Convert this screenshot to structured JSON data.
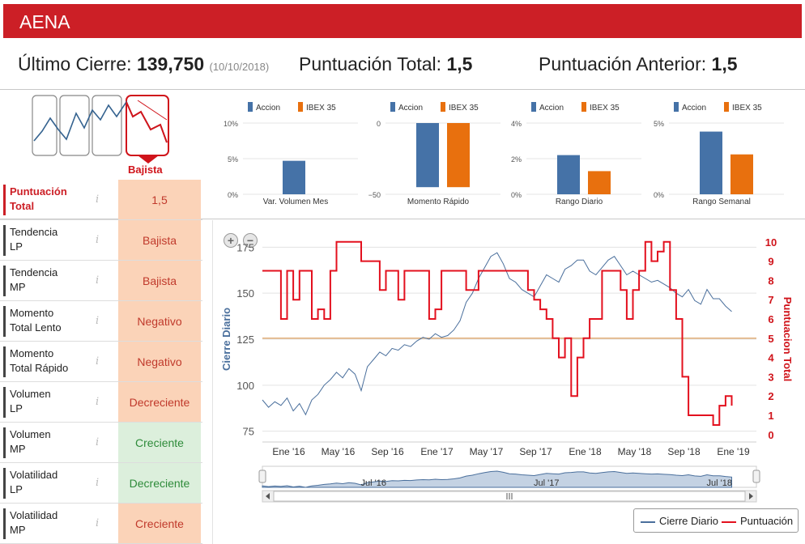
{
  "header": {
    "title": "AENA"
  },
  "summary": {
    "last_close_label": "Último Cierre:",
    "last_close_value": "139,750",
    "last_close_date": "(10/10/2018)",
    "total_score_label": "Puntuación Total:",
    "total_score_value": "1,5",
    "prev_score_label": "Puntuación Anterior:",
    "prev_score_value": "1,5"
  },
  "trend": {
    "label": "Bajista"
  },
  "score_table": {
    "info_icon": "i",
    "rows": [
      {
        "label_line1": "Puntuación",
        "label_line2": "Total",
        "value": "1,5"
      },
      {
        "label_line1": "Tendencia",
        "label_line2": "LP",
        "value": "Bajista"
      },
      {
        "label_line1": "Tendencia",
        "label_line2": "MP",
        "value": "Bajista"
      },
      {
        "label_line1": "Momento",
        "label_line2": "Total Lento",
        "value": "Negativo"
      },
      {
        "label_line1": "Momento",
        "label_line2": "Total Rápido",
        "value": "Negativo"
      },
      {
        "label_line1": "Volumen",
        "label_line2": "LP",
        "value": "Decreciente"
      },
      {
        "label_line1": "Volumen",
        "label_line2": "MP",
        "value": "Creciente"
      },
      {
        "label_line1": "Volatilidad",
        "label_line2": "LP",
        "value": "Decreciente"
      },
      {
        "label_line1": "Volatilidad",
        "label_line2": "MP",
        "value": "Creciente"
      }
    ]
  },
  "colors": {
    "accion": "#4572a7",
    "ibex": "#e8700e",
    "price_line": "#4a6f9c",
    "score_line": "#e3101e",
    "banner": "#cc1f26",
    "threshold": "#e3b07a"
  },
  "main_chart": {
    "zoom_in": "+",
    "zoom_out": "−"
  },
  "chart_data": [
    {
      "type": "bar",
      "title": "Var. Volumen Mes",
      "series": [
        {
          "name": "Accion",
          "values": [
            4.7
          ]
        }
      ],
      "ylim": [
        0,
        10
      ],
      "ticks": [
        "0%",
        "5%",
        "10%"
      ]
    },
    {
      "type": "bar",
      "title": "Momento Rápido",
      "series": [
        {
          "name": "Accion",
          "values": [
            -45
          ]
        },
        {
          "name": "IBEX 35",
          "values": [
            -45
          ]
        }
      ],
      "ylim": [
        -50,
        0
      ],
      "ticks": [
        "−50",
        "0"
      ]
    },
    {
      "type": "bar",
      "title": "Rango Diario",
      "series": [
        {
          "name": "Accion",
          "values": [
            2.2
          ]
        },
        {
          "name": "IBEX 35",
          "values": [
            1.3
          ]
        }
      ],
      "ylim": [
        0,
        4
      ],
      "ticks": [
        "0%",
        "2%",
        "4%"
      ]
    },
    {
      "type": "bar",
      "title": "Rango Semanal",
      "series": [
        {
          "name": "Accion",
          "values": [
            4.4
          ]
        },
        {
          "name": "IBEX 35",
          "values": [
            2.8
          ]
        }
      ],
      "ylim": [
        0,
        5
      ],
      "ticks": [
        "0%",
        "5%"
      ]
    },
    {
      "type": "line",
      "title": "",
      "ylabel_left": "Cierre Diario",
      "ylabel_right": "Puntuacion Total",
      "y_left_ticks": [
        75,
        100,
        125,
        150,
        175
      ],
      "y_left_range": [
        70,
        180
      ],
      "y_right_ticks": [
        0,
        1,
        2,
        3,
        4,
        5,
        6,
        7,
        8,
        9,
        10
      ],
      "y_right_range": [
        -0.3,
        10.2
      ],
      "threshold": 5,
      "x_labels": [
        "Ene '16",
        "May '16",
        "Sep '16",
        "Ene '17",
        "May '17",
        "Sep '17",
        "Ene '18",
        "May '18",
        "Sep '18",
        "Ene '19"
      ],
      "x_range": [
        0,
        40
      ],
      "navigator_labels": [
        "Jul '16",
        "Jul '17",
        "Jul '18"
      ],
      "series": [
        {
          "name": "Cierre Diario",
          "x": [
            0,
            0.5,
            1,
            1.5,
            2,
            2.5,
            3,
            3.5,
            4,
            4.5,
            5,
            5.5,
            6,
            6.5,
            7,
            7.5,
            8,
            8.5,
            9,
            9.5,
            10,
            10.5,
            11,
            11.5,
            12,
            12.5,
            13,
            13.5,
            14,
            14.5,
            15,
            15.5,
            16,
            16.5,
            17,
            17.5,
            18,
            18.5,
            19,
            19.5,
            20,
            20.5,
            21,
            21.5,
            22,
            22.5,
            23,
            23.5,
            24,
            24.5,
            25,
            25.5,
            26,
            26.5,
            27,
            27.5,
            28,
            28.5,
            29,
            29.5,
            30,
            30.5,
            31,
            31.5,
            32,
            32.5,
            33,
            33.5,
            34,
            34.5,
            35,
            35.5,
            36,
            36.5,
            37,
            37.5,
            38
          ],
          "values": [
            92,
            88,
            91,
            89,
            93,
            86,
            90,
            84,
            92,
            95,
            100,
            103,
            107,
            104,
            109,
            106,
            97,
            110,
            114,
            118,
            116,
            120,
            119,
            122,
            121,
            124,
            126,
            125,
            128,
            126,
            127,
            130,
            135,
            145,
            150,
            158,
            164,
            170,
            172,
            166,
            158,
            156,
            152,
            150,
            148,
            154,
            160,
            158,
            156,
            163,
            165,
            168,
            168,
            162,
            160,
            164,
            168,
            170,
            165,
            160,
            162,
            160,
            158,
            156,
            157,
            155,
            153,
            150,
            148,
            152,
            146,
            144,
            152,
            147,
            147,
            143,
            140
          ]
        },
        {
          "name": "Puntuación",
          "x": [
            0,
            1,
            1.5,
            2,
            2.5,
            3,
            3.5,
            4,
            4.5,
            5,
            5.5,
            6,
            6.5,
            7,
            8,
            8.5,
            9,
            9.5,
            10,
            10.5,
            11,
            11.5,
            12,
            12.5,
            13,
            13.5,
            14,
            14.5,
            15,
            15.5,
            16,
            16.5,
            17,
            17.5,
            18,
            18.5,
            19,
            19.5,
            20,
            20.5,
            21,
            21.5,
            22,
            22.5,
            23,
            23.5,
            24,
            24.5,
            25,
            25.5,
            26,
            26.5,
            27,
            27.5,
            28,
            28.5,
            29,
            29.5,
            30,
            30.5,
            31,
            31.5,
            32,
            32.5,
            33,
            33.5,
            34,
            34.5,
            35,
            35.5,
            36,
            36.5,
            37,
            37.5,
            38
          ],
          "values": [
            8.5,
            8.5,
            6,
            8.5,
            7,
            8.5,
            8.5,
            6,
            6.5,
            6,
            8.5,
            10,
            10,
            10,
            9,
            9,
            9,
            7.5,
            8.5,
            8.5,
            7,
            8.5,
            8.5,
            8.5,
            8.5,
            6,
            6.5,
            8.5,
            8.5,
            8.5,
            8.5,
            7.5,
            7.5,
            8.5,
            8.5,
            8.5,
            8.5,
            8.5,
            8.5,
            8.5,
            8.5,
            7.5,
            7,
            6.5,
            6,
            5,
            4,
            5,
            2,
            4,
            5,
            6,
            6,
            8.5,
            8.5,
            8.5,
            7.5,
            6,
            7.5,
            8.5,
            10,
            9,
            9.5,
            10,
            7.5,
            6,
            3,
            1,
            1,
            1,
            1,
            0.5,
            1.5,
            2,
            1.5
          ]
        }
      ]
    }
  ],
  "legend": {
    "items": [
      "Cierre Diario",
      "Puntuación"
    ]
  }
}
